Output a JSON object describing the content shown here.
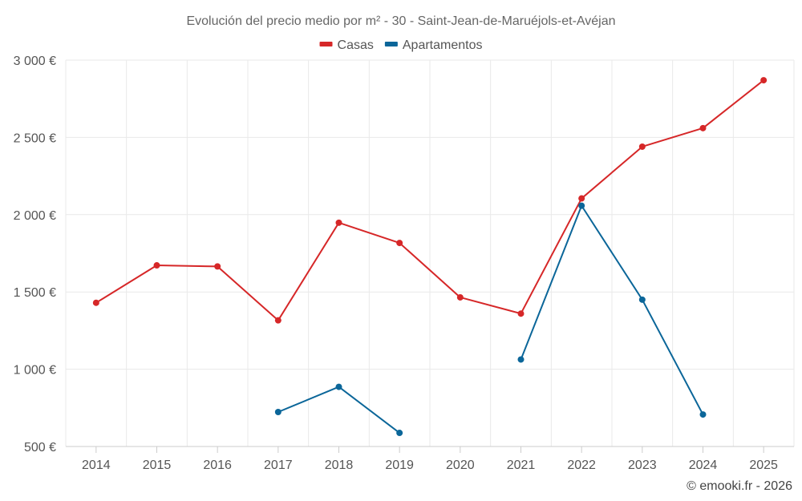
{
  "chart_data": {
    "type": "line",
    "title": "Evolución del precio medio por m² - 30 - Saint-Jean-de-Maruéjols-et-Avéjan",
    "categories": [
      "2014",
      "2015",
      "2016",
      "2017",
      "2018",
      "2019",
      "2020",
      "2021",
      "2022",
      "2023",
      "2024",
      "2025"
    ],
    "series": [
      {
        "name": "Casas",
        "color": "#d62728",
        "values": [
          1430,
          1672,
          1665,
          1316,
          1948,
          1817,
          1465,
          1360,
          2105,
          2440,
          2560,
          2870
        ]
      },
      {
        "name": "Apartamentos",
        "color": "#0b6699",
        "values": [
          null,
          null,
          null,
          723,
          886,
          588,
          null,
          1063,
          2058,
          1450,
          707,
          null
        ]
      }
    ],
    "ylim": [
      500,
      3000
    ],
    "yticks": [
      500,
      1000,
      1500,
      2000,
      2500,
      3000
    ],
    "ytick_labels": [
      "500 €",
      "1 000 €",
      "1 500 €",
      "2 000 €",
      "2 500 €",
      "3 000 €"
    ],
    "xlabel": "",
    "ylabel": "",
    "legend": "top-center",
    "grid": true
  },
  "credit": "© emooki.fr - 2026"
}
